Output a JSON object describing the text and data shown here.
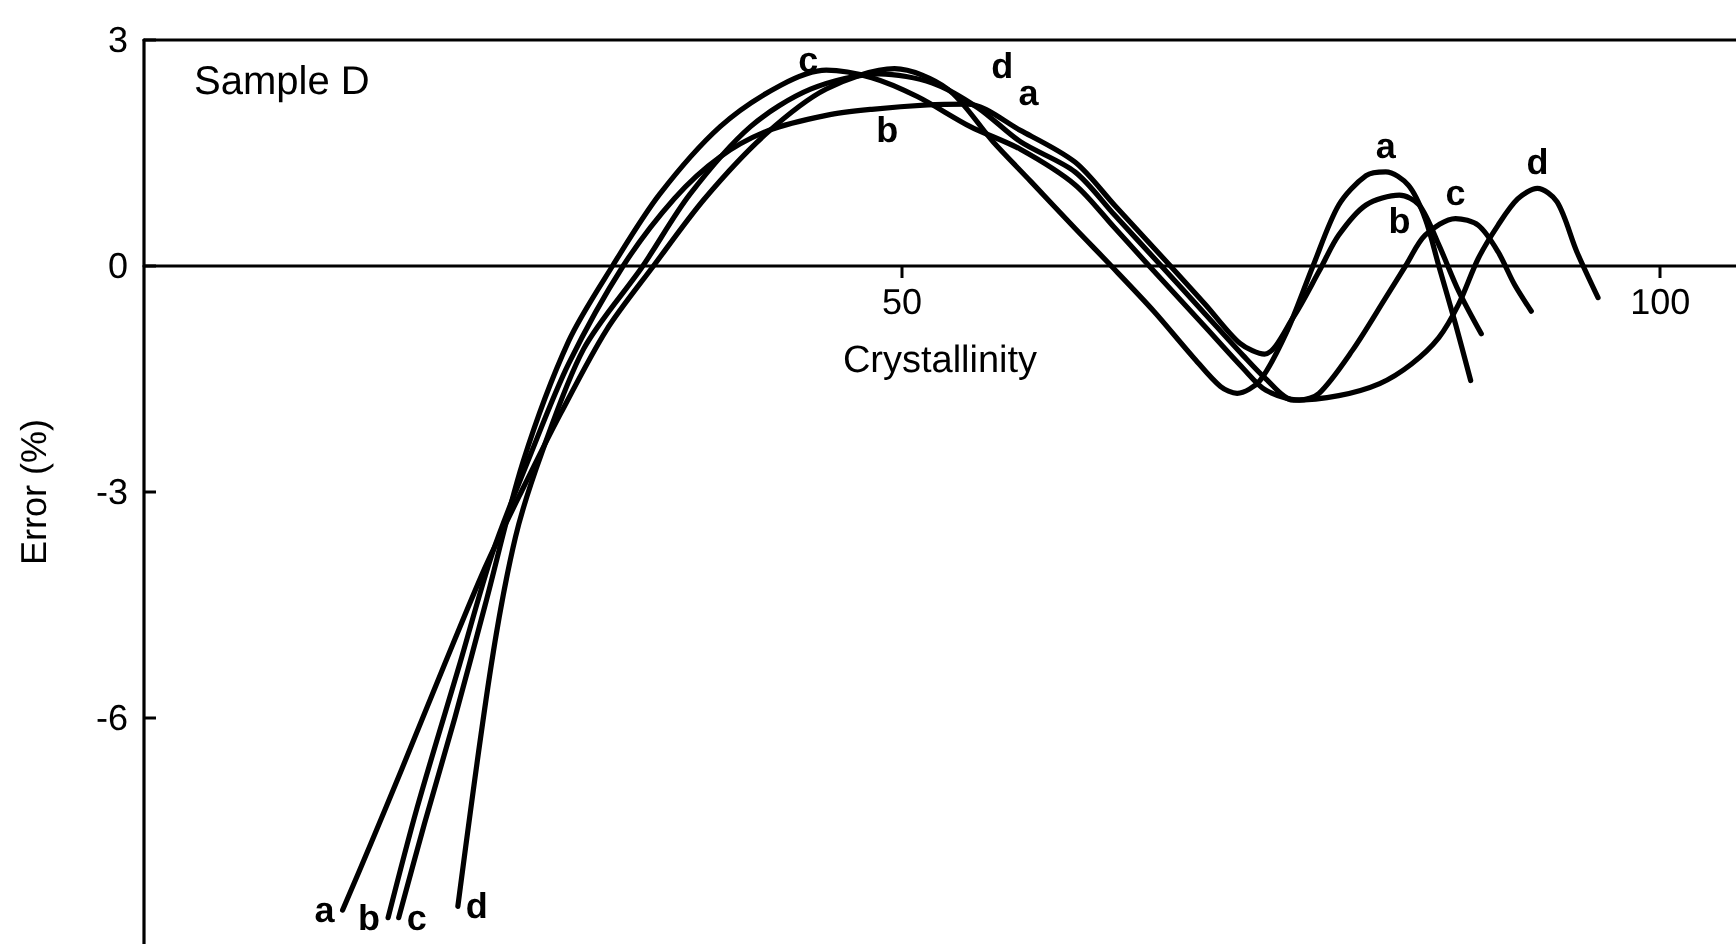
{
  "chart_data": {
    "type": "line",
    "title": "Sample D",
    "xlabel": "Crystallinity",
    "ylabel": "Error (%)",
    "xlim": [
      0,
      105
    ],
    "ylim": [
      -9,
      3
    ],
    "xticks": [
      50,
      100
    ],
    "yticks": [
      -6,
      -3,
      0,
      3
    ],
    "grid": false,
    "legend": false,
    "marker": "none",
    "line_style": "solid",
    "series": [
      {
        "name": "a",
        "color": "#000000",
        "x": [
          13.1,
          15,
          17,
          19.8,
          22.5,
          25,
          27.5,
          30.5,
          33.6,
          37,
          41,
          45,
          49.5,
          53,
          56,
          58.5,
          61.4,
          63.8,
          66.6,
          69.2,
          71,
          72.1,
          73.6,
          75.4,
          77.1,
          78.8,
          80.6,
          81.9,
          83.4,
          84.5,
          85.4,
          86.5,
          87.5
        ],
        "values": [
          -8.55,
          -7.65,
          -6.68,
          -5.3,
          -4.0,
          -2.95,
          -1.95,
          -0.85,
          0,
          0.9,
          1.75,
          2.35,
          2.62,
          2.35,
          1.65,
          1.12,
          0.5,
          0,
          -0.6,
          -1.21,
          -1.6,
          -1.69,
          -1.52,
          -0.86,
          0,
          0.81,
          1.2,
          1.25,
          1.07,
          0.63,
          0,
          -0.77,
          -1.52
        ]
      },
      {
        "name": "b",
        "color": "#000000",
        "x": [
          16.1,
          18,
          20.8,
          23,
          25.5,
          28,
          31.6,
          35,
          38,
          41.2,
          45,
          48,
          51.7,
          54.3,
          57.8,
          61.4,
          64,
          67.7,
          70,
          72.3,
          73.9,
          75.8,
          77.5,
          78.8,
          80.6,
          82.8,
          84.1,
          85.4,
          86.7,
          88.2
        ],
        "values": [
          -8.65,
          -7.2,
          -5.3,
          -3.8,
          -2.5,
          -1.3,
          0,
          0.9,
          1.45,
          1.8,
          2.0,
          2.08,
          2.14,
          2.15,
          1.8,
          1.38,
          0.81,
          0,
          -0.51,
          -1.03,
          -1.17,
          -0.68,
          -0.07,
          0.41,
          0.81,
          0.94,
          0.81,
          0.28,
          -0.33,
          -0.9
        ]
      },
      {
        "name": "c",
        "color": "#000000",
        "x": [
          16.8,
          18.5,
          20.5,
          22.5,
          25,
          28,
          30.9,
          34,
          38,
          42,
          45,
          48,
          51,
          54.5,
          57.8,
          61.4,
          64,
          66.3,
          70,
          72.5,
          74,
          76.2,
          77.5,
          79.7,
          81.9,
          83.2,
          84.5,
          86.5,
          88,
          89.3,
          90.4,
          91.5
        ],
        "values": [
          -8.65,
          -7.4,
          -6.0,
          -4.5,
          -2.6,
          -1.0,
          0,
          0.95,
          1.85,
          2.4,
          2.6,
          2.5,
          2.25,
          1.85,
          1.55,
          1.08,
          0.51,
          0,
          -0.81,
          -1.36,
          -1.65,
          -1.78,
          -1.69,
          -1.12,
          -0.42,
          0,
          0.41,
          0.63,
          0.54,
          0.19,
          -0.25,
          -0.6
        ]
      },
      {
        "name": "d",
        "color": "#000000",
        "x": [
          20.7,
          22.9,
          24.5,
          26.2,
          29,
          32.9,
          36,
          40,
          44,
          48.5,
          52,
          55,
          57.8,
          61.4,
          64,
          67.1,
          70,
          72.5,
          74,
          75.8,
          78.8,
          81.5,
          83.6,
          85.4,
          86.7,
          88,
          89.3,
          90.6,
          91.9,
          93.2,
          94.5,
          95.9
        ],
        "values": [
          -8.5,
          -5.3,
          -3.6,
          -2.5,
          -1.1,
          0,
          0.95,
          1.85,
          2.35,
          2.55,
          2.43,
          2.1,
          1.65,
          1.25,
          0.68,
          0,
          -0.64,
          -1.19,
          -1.5,
          -1.78,
          -1.72,
          -1.56,
          -1.3,
          -0.95,
          -0.51,
          0.1,
          0.54,
          0.89,
          1.03,
          0.85,
          0.19,
          -0.42
        ]
      }
    ]
  }
}
